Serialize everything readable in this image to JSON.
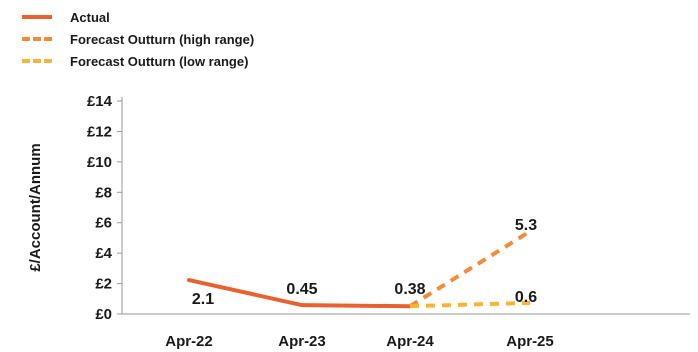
{
  "chart_data": {
    "type": "line",
    "categories": [
      "Apr-22",
      "Apr-23",
      "Apr-24",
      "Apr-25"
    ],
    "ylabel": "£/Account/Annum",
    "ylim": [
      0,
      14
    ],
    "yticks": [
      "£0",
      "£2",
      "£4",
      "£6",
      "£8",
      "£10",
      "£12",
      "£14"
    ],
    "grid": false,
    "legend_position": "top-left",
    "series": [
      {
        "name": "Actual",
        "style": "solid",
        "color": "#e8622f",
        "values": [
          2.1,
          0.45,
          0.38,
          null
        ]
      },
      {
        "name": "Forecast Outturn (high range)",
        "style": "dashed",
        "color": "#f28a3c",
        "values": [
          null,
          null,
          0.38,
          5.3
        ]
      },
      {
        "name": "Forecast Outturn (low range)",
        "style": "dashed",
        "color": "#f6b43a",
        "values": [
          null,
          null,
          0.38,
          0.6
        ]
      }
    ],
    "data_labels": [
      {
        "category": "Apr-22",
        "text": "2.1"
      },
      {
        "category": "Apr-23",
        "text": "0.45"
      },
      {
        "category": "Apr-24",
        "text": "0.38"
      },
      {
        "category": "Apr-25",
        "text": "5.3"
      },
      {
        "category": "Apr-25",
        "text": "0.6"
      }
    ]
  }
}
